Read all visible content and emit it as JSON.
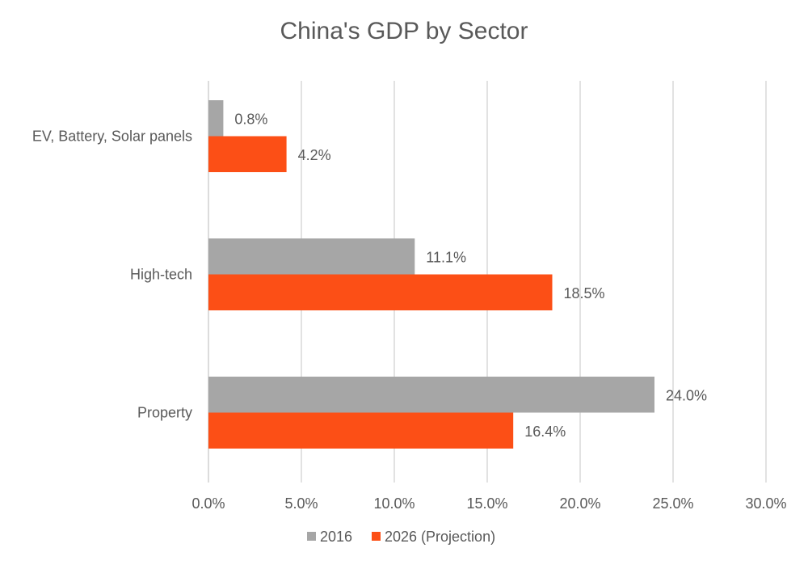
{
  "chart_data": {
    "type": "bar",
    "orientation": "horizontal",
    "title": "China's GDP by Sector",
    "categories": [
      "EV, Battery, Solar panels",
      "High-tech",
      "Property"
    ],
    "series": [
      {
        "name": "2016",
        "color": "#A6A6A6",
        "values": [
          0.8,
          11.1,
          24.0
        ],
        "labels": [
          "0.8%",
          "11.1%",
          "24.0%"
        ]
      },
      {
        "name": "2026 (Projection)",
        "color": "#FC4F16",
        "values": [
          4.2,
          18.5,
          16.4
        ],
        "labels": [
          "4.2%",
          "18.5%",
          "16.4%"
        ]
      }
    ],
    "xlim": [
      0,
      30
    ],
    "xticks": [
      0,
      5,
      10,
      15,
      20,
      25,
      30
    ],
    "xtick_labels": [
      "0.0%",
      "5.0%",
      "10.0%",
      "15.0%",
      "20.0%",
      "25.0%",
      "30.0%"
    ],
    "xlabel": "",
    "ylabel": "",
    "grid": "vertical",
    "legend": "bottom"
  }
}
